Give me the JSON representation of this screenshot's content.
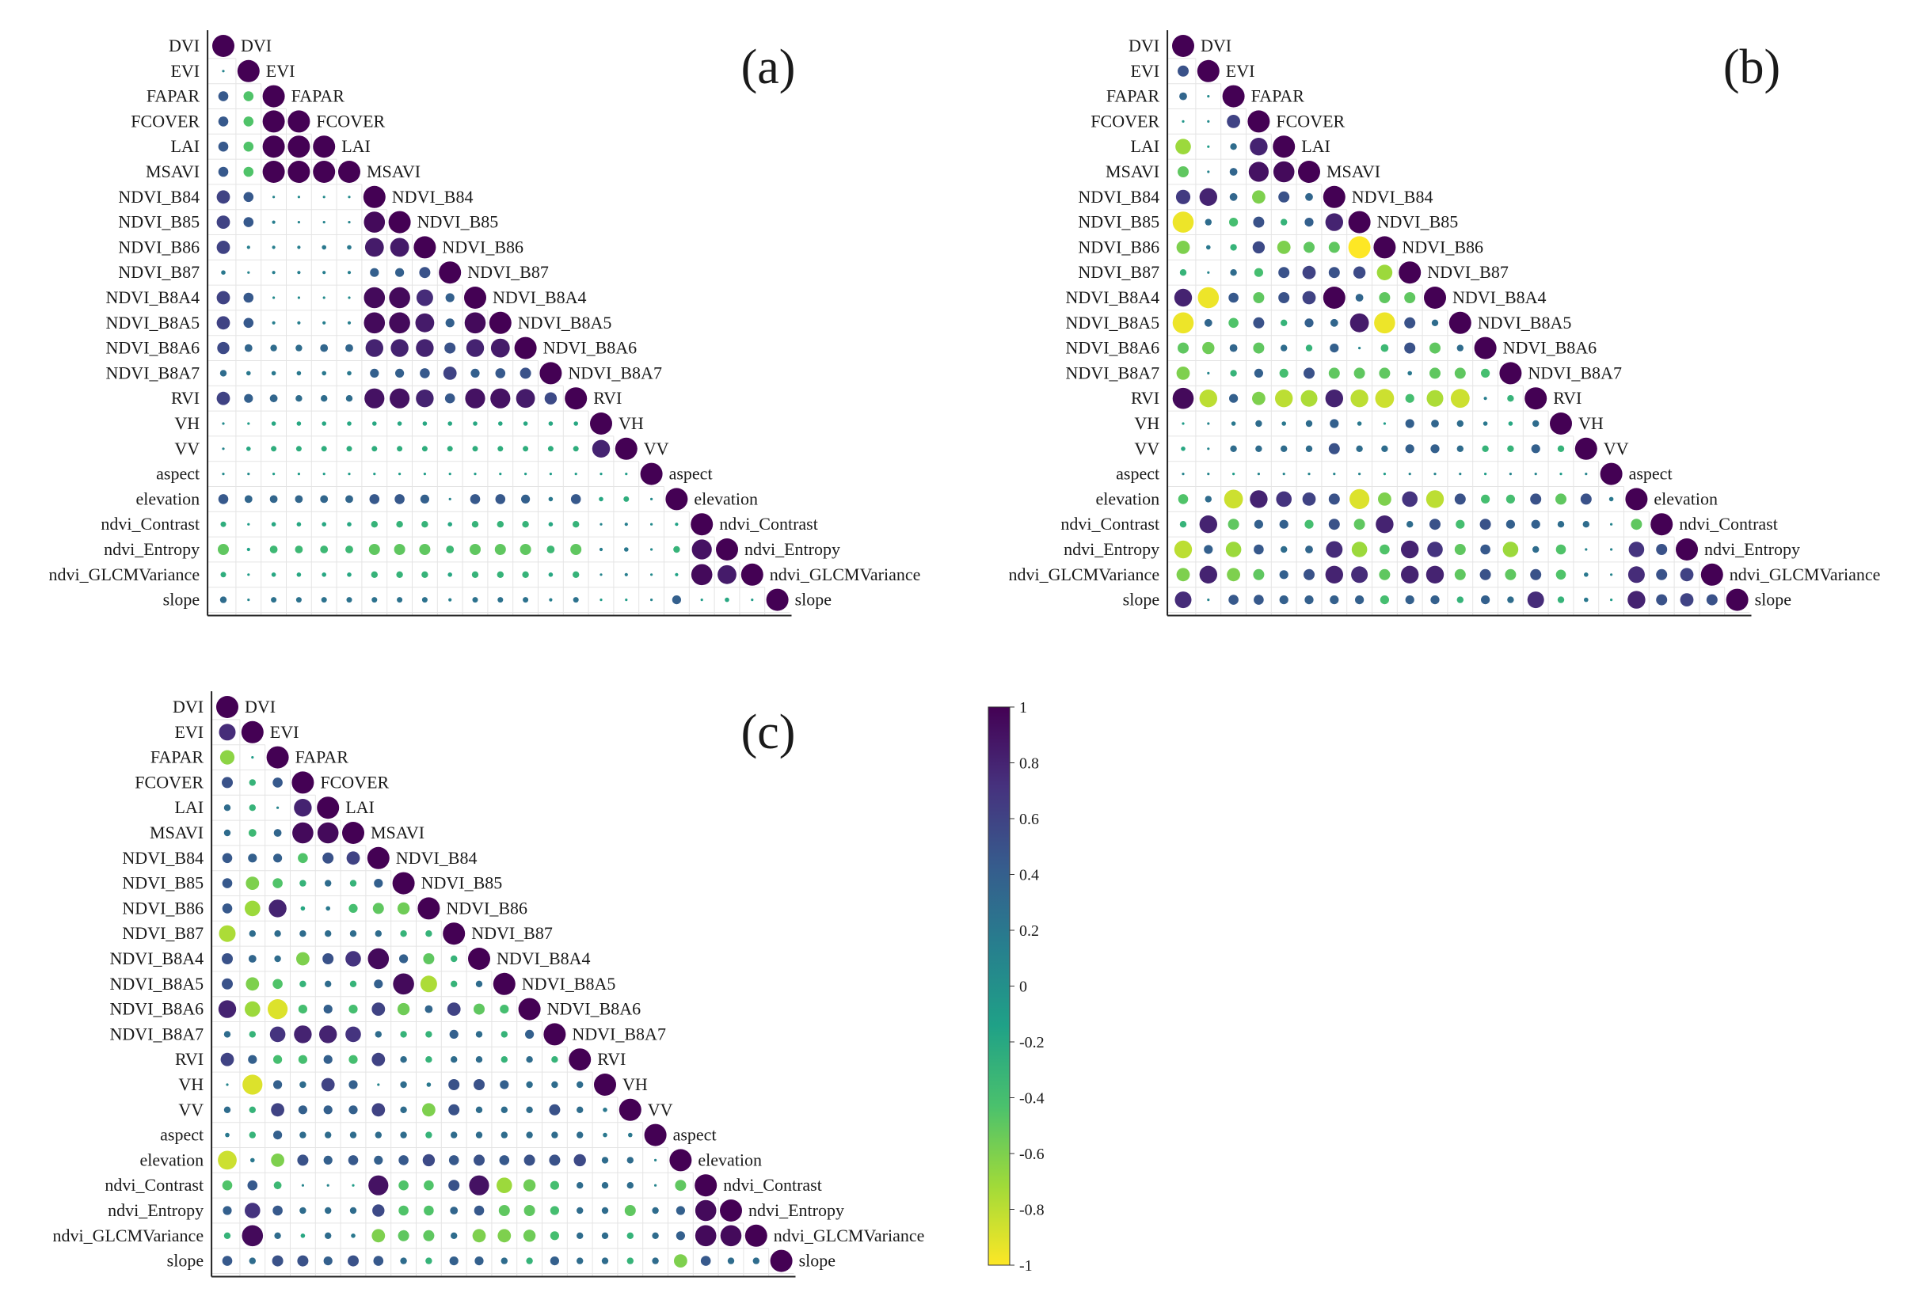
{
  "chart_data": {
    "type": "heatmap",
    "variables": [
      "DVI",
      "EVI",
      "FAPAR",
      "FCOVER",
      "LAI",
      "MSAVI",
      "NDVI_B84",
      "NDVI_B85",
      "NDVI_B86",
      "NDVI_B87",
      "NDVI_B8A4",
      "NDVI_B8A5",
      "NDVI_B8A6",
      "NDVI_B8A7",
      "RVI",
      "VH",
      "VV",
      "aspect",
      "elevation",
      "ndvi_Contrast",
      "ndvi_Entropy",
      "ndvi_GLCMVariance",
      "slope"
    ],
    "colorbar": {
      "range": [
        -1,
        1
      ],
      "ticks": [
        1,
        0.8,
        0.6,
        0.4,
        0.2,
        0,
        -0.2,
        -0.4,
        -0.6,
        -0.8,
        -1
      ],
      "tick_labels": [
        "1",
        "0.8",
        "0.6",
        "0.4",
        "0.2",
        "0",
        "-0.2",
        "-0.4",
        "-0.6",
        "-0.8",
        "-1"
      ],
      "colors": [
        "#fde725",
        "#a0da39",
        "#4ac16d",
        "#1fa187",
        "#277f8e",
        "#365c8d",
        "#46327e",
        "#440154"
      ]
    },
    "panels": [
      {
        "label": "(a)",
        "matrix": [
          [
            1.0
          ],
          [
            0.1,
            1.0
          ],
          [
            0.45,
            -0.45,
            1.0
          ],
          [
            0.45,
            -0.45,
            1.0,
            1.0
          ],
          [
            0.45,
            -0.45,
            1.0,
            1.0,
            1.0
          ],
          [
            0.45,
            -0.45,
            1.0,
            1.0,
            1.0,
            1.0
          ],
          [
            0.6,
            0.45,
            0.1,
            0.05,
            0.05,
            0.05,
            1.0
          ],
          [
            0.6,
            0.45,
            0.15,
            0.1,
            0.1,
            0.1,
            0.95,
            1.0
          ],
          [
            0.6,
            0.15,
            0.15,
            0.15,
            0.2,
            0.2,
            0.85,
            0.85,
            1.0
          ],
          [
            0.2,
            0.1,
            0.15,
            0.15,
            0.15,
            0.15,
            0.4,
            0.4,
            0.5,
            1.0
          ],
          [
            0.6,
            0.45,
            0.05,
            0.05,
            0.05,
            0.05,
            0.95,
            0.95,
            0.75,
            0.4,
            1.0
          ],
          [
            0.6,
            0.45,
            0.15,
            0.15,
            0.15,
            0.15,
            0.95,
            0.95,
            0.85,
            0.4,
            0.95,
            1.0
          ],
          [
            0.55,
            0.35,
            0.3,
            0.3,
            0.35,
            0.35,
            0.8,
            0.8,
            0.8,
            0.5,
            0.8,
            0.85,
            1.0
          ],
          [
            0.3,
            0.2,
            0.2,
            0.2,
            0.2,
            0.2,
            0.4,
            0.4,
            0.45,
            0.6,
            0.4,
            0.45,
            0.5,
            1.0
          ],
          [
            0.6,
            0.4,
            0.35,
            0.3,
            0.3,
            0.3,
            0.9,
            0.9,
            0.8,
            0.45,
            0.9,
            0.9,
            0.85,
            0.55,
            1.0
          ],
          [
            0.05,
            -0.1,
            -0.2,
            -0.2,
            -0.2,
            -0.2,
            -0.2,
            -0.2,
            -0.2,
            -0.2,
            -0.2,
            -0.2,
            -0.2,
            -0.2,
            -0.2,
            1.0
          ],
          [
            0.1,
            -0.2,
            -0.25,
            -0.25,
            -0.25,
            -0.25,
            -0.25,
            -0.25,
            -0.25,
            -0.25,
            -0.25,
            -0.25,
            -0.25,
            -0.25,
            -0.25,
            0.8,
            1.0
          ],
          [
            0.05,
            0.05,
            -0.1,
            -0.1,
            -0.1,
            -0.1,
            -0.1,
            -0.1,
            -0.1,
            -0.1,
            -0.1,
            -0.1,
            -0.1,
            -0.1,
            -0.1,
            -0.1,
            -0.1,
            1.0
          ],
          [
            0.45,
            0.35,
            0.35,
            0.35,
            0.35,
            0.35,
            0.45,
            0.45,
            0.4,
            0.1,
            0.45,
            0.45,
            0.4,
            0.2,
            0.45,
            -0.2,
            -0.25,
            0.05,
            1.0
          ],
          [
            -0.25,
            -0.1,
            -0.2,
            -0.2,
            -0.2,
            -0.2,
            -0.3,
            -0.3,
            -0.3,
            -0.2,
            -0.3,
            -0.3,
            -0.3,
            -0.2,
            -0.3,
            0.1,
            0.15,
            0.05,
            -0.15,
            1.0
          ],
          [
            -0.5,
            -0.15,
            -0.35,
            -0.35,
            -0.35,
            -0.35,
            -0.5,
            -0.5,
            -0.5,
            -0.35,
            -0.5,
            -0.5,
            -0.5,
            -0.35,
            -0.5,
            0.15,
            0.2,
            0.05,
            -0.3,
            0.9,
            1.0
          ],
          [
            -0.25,
            -0.1,
            -0.2,
            -0.2,
            -0.2,
            -0.2,
            -0.3,
            -0.3,
            -0.3,
            -0.2,
            -0.3,
            -0.3,
            -0.3,
            -0.2,
            -0.3,
            0.1,
            0.15,
            0.05,
            -0.15,
            0.95,
            0.85,
            1.0
          ],
          [
            0.3,
            0.1,
            0.25,
            0.25,
            0.25,
            0.25,
            0.25,
            0.25,
            0.25,
            0.15,
            0.25,
            0.25,
            0.25,
            0.15,
            0.25,
            -0.1,
            -0.1,
            0.1,
            0.4,
            -0.1,
            -0.2,
            -0.1,
            1.0
          ]
        ]
      },
      {
        "label": "(b)",
        "matrix": [
          [
            1.0
          ],
          [
            0.5,
            1.0
          ],
          [
            0.35,
            0.05,
            1.0
          ],
          [
            -0.05,
            0.05,
            0.6,
            1.0
          ],
          [
            -0.7,
            -0.1,
            0.3,
            0.8,
            1.0
          ],
          [
            -0.5,
            0.1,
            0.35,
            0.9,
            0.95,
            1.0
          ],
          [
            0.65,
            0.8,
            0.35,
            -0.6,
            0.5,
            0.35,
            1.0
          ],
          [
            -0.95,
            0.3,
            -0.4,
            0.5,
            -0.3,
            0.4,
            0.8,
            1.0
          ],
          [
            -0.6,
            0.2,
            -0.3,
            0.55,
            -0.6,
            -0.5,
            -0.5,
            -1.0,
            1.0
          ],
          [
            -0.3,
            0.1,
            0.3,
            -0.4,
            0.5,
            0.6,
            0.5,
            0.55,
            -0.7,
            1.0
          ],
          [
            0.8,
            -0.95,
            0.45,
            -0.5,
            0.5,
            0.6,
            1.0,
            0.35,
            -0.5,
            -0.5,
            1.0
          ],
          [
            -0.95,
            0.35,
            -0.45,
            0.5,
            -0.3,
            0.4,
            0.35,
            0.85,
            -0.95,
            0.5,
            0.3,
            1.0
          ],
          [
            -0.5,
            -0.55,
            0.35,
            -0.5,
            0.3,
            -0.3,
            0.4,
            0.1,
            -0.35,
            0.5,
            -0.5,
            0.3,
            1.0
          ],
          [
            -0.6,
            0.1,
            -0.3,
            0.4,
            -0.4,
            0.5,
            -0.5,
            -0.5,
            -0.5,
            0.2,
            -0.5,
            -0.5,
            -0.4,
            1.0
          ],
          [
            0.95,
            -0.8,
            0.4,
            -0.6,
            -0.8,
            -0.75,
            0.8,
            -0.8,
            -0.85,
            -0.4,
            -0.75,
            -0.85,
            0.15,
            -0.3,
            1.0
          ],
          [
            -0.1,
            0.1,
            0.2,
            0.3,
            0.2,
            0.3,
            0.4,
            0.2,
            -0.1,
            0.4,
            0.35,
            0.3,
            0.2,
            -0.2,
            0.3,
            1.0
          ],
          [
            -0.2,
            0.1,
            0.3,
            0.3,
            0.3,
            0.3,
            0.5,
            0.3,
            0.3,
            0.4,
            0.4,
            0.3,
            -0.3,
            -0.3,
            0.4,
            -0.3,
            1.0
          ],
          [
            0.1,
            0.1,
            -0.1,
            0.1,
            0.1,
            0.1,
            0.1,
            0.1,
            -0.1,
            0.1,
            0.1,
            0.1,
            -0.1,
            0.1,
            0.1,
            -0.1,
            0.1,
            1.0
          ],
          [
            -0.45,
            0.3,
            -0.85,
            0.8,
            0.7,
            0.6,
            0.5,
            -0.9,
            -0.6,
            0.7,
            -0.8,
            0.5,
            -0.4,
            -0.4,
            0.5,
            -0.5,
            0.5,
            0.2,
            1.0
          ],
          [
            -0.3,
            0.8,
            -0.5,
            0.4,
            0.4,
            -0.4,
            0.5,
            -0.5,
            0.8,
            0.3,
            0.5,
            -0.4,
            0.5,
            0.4,
            0.4,
            0.3,
            0.3,
            0.1,
            -0.5,
            1.0
          ],
          [
            -0.8,
            0.4,
            -0.7,
            0.45,
            0.3,
            0.35,
            0.75,
            -0.7,
            -0.45,
            0.8,
            0.7,
            -0.5,
            0.45,
            -0.7,
            0.3,
            -0.45,
            0.1,
            0.1,
            0.7,
            0.5,
            1.0
          ],
          [
            -0.6,
            0.8,
            -0.6,
            -0.5,
            0.4,
            0.5,
            0.8,
            0.75,
            -0.5,
            0.8,
            0.8,
            -0.5,
            0.5,
            -0.5,
            0.5,
            -0.45,
            0.2,
            0.1,
            0.75,
            0.5,
            0.6,
            1.0
          ],
          [
            0.75,
            0.1,
            0.45,
            0.45,
            0.4,
            0.4,
            0.4,
            0.4,
            -0.4,
            0.4,
            0.4,
            -0.3,
            0.4,
            0.3,
            0.75,
            -0.3,
            0.2,
            -0.1,
            0.8,
            0.5,
            0.6,
            0.5,
            1.0
          ]
        ]
      },
      {
        "label": "(c)",
        "matrix": [
          [
            1.0
          ],
          [
            0.75,
            1.0
          ],
          [
            -0.65,
            -0.1,
            1.0
          ],
          [
            0.5,
            -0.3,
            0.45,
            1.0
          ],
          [
            0.3,
            -0.3,
            0.1,
            0.8,
            1.0
          ],
          [
            0.3,
            -0.35,
            0.35,
            0.95,
            0.95,
            1.0
          ],
          [
            0.45,
            0.4,
            0.4,
            -0.45,
            0.5,
            0.6,
            1.0
          ],
          [
            0.45,
            -0.6,
            -0.45,
            -0.3,
            0.3,
            -0.3,
            0.4,
            1.0
          ],
          [
            0.45,
            -0.7,
            0.8,
            -0.2,
            0.2,
            -0.4,
            -0.5,
            -0.55,
            1.0
          ],
          [
            -0.75,
            0.3,
            0.3,
            0.3,
            0.3,
            0.3,
            0.3,
            -0.3,
            -0.3,
            1.0
          ],
          [
            0.5,
            0.35,
            0.3,
            -0.6,
            0.5,
            0.7,
            0.95,
            0.4,
            -0.5,
            -0.3,
            1.0
          ],
          [
            0.5,
            -0.6,
            -0.45,
            -0.3,
            0.3,
            -0.3,
            0.4,
            0.95,
            -0.75,
            -0.3,
            0.3,
            1.0
          ],
          [
            0.8,
            -0.7,
            -0.9,
            -0.4,
            0.4,
            -0.4,
            0.6,
            -0.55,
            0.35,
            0.6,
            -0.5,
            -0.4,
            1.0
          ],
          [
            0.3,
            -0.3,
            0.7,
            0.8,
            0.8,
            0.7,
            0.3,
            -0.3,
            -0.3,
            0.4,
            0.3,
            -0.3,
            0.4,
            1.0
          ],
          [
            0.6,
            0.4,
            -0.4,
            -0.4,
            0.4,
            -0.4,
            0.6,
            0.3,
            -0.3,
            0.3,
            0.3,
            -0.3,
            0.3,
            -0.3,
            1.0
          ],
          [
            0.1,
            -0.9,
            0.4,
            0.3,
            0.6,
            0.4,
            0.1,
            0.3,
            0.2,
            0.5,
            0.5,
            0.4,
            0.3,
            0.3,
            0.3,
            1.0
          ],
          [
            0.3,
            -0.3,
            0.6,
            0.4,
            0.4,
            0.4,
            0.6,
            0.3,
            -0.6,
            0.5,
            0.3,
            0.3,
            0.3,
            0.5,
            0.3,
            0.2,
            1.0
          ],
          [
            0.2,
            -0.3,
            0.4,
            0.3,
            0.3,
            0.3,
            0.3,
            0.3,
            -0.3,
            0.3,
            0.3,
            0.3,
            0.3,
            0.3,
            0.3,
            0.2,
            0.2,
            1.0
          ],
          [
            -0.85,
            0.2,
            -0.6,
            0.5,
            0.4,
            0.45,
            0.4,
            0.45,
            0.55,
            0.45,
            0.5,
            0.45,
            0.5,
            0.5,
            0.55,
            0.3,
            0.3,
            0.1,
            1.0
          ],
          [
            -0.45,
            0.45,
            -0.35,
            0.1,
            0.1,
            -0.1,
            0.9,
            -0.45,
            -0.45,
            0.5,
            0.9,
            -0.7,
            -0.55,
            -0.4,
            0.3,
            0.3,
            0.3,
            0.1,
            -0.5,
            1.0
          ],
          [
            0.4,
            0.7,
            0.45,
            0.3,
            0.3,
            0.3,
            0.55,
            -0.45,
            -0.45,
            0.35,
            0.45,
            -0.5,
            -0.5,
            -0.4,
            0.3,
            0.3,
            -0.5,
            0.3,
            0.4,
            0.95,
            1.0
          ],
          [
            -0.3,
            0.95,
            0.3,
            -0.2,
            0.3,
            0.2,
            -0.6,
            -0.5,
            -0.5,
            0.3,
            -0.6,
            -0.6,
            -0.55,
            -0.4,
            0.3,
            0.3,
            -0.3,
            0.3,
            0.4,
            0.95,
            0.95,
            1.0
          ],
          [
            0.45,
            0.3,
            0.5,
            0.5,
            0.4,
            0.5,
            0.45,
            0.3,
            -0.3,
            0.4,
            0.4,
            0.3,
            -0.3,
            0.4,
            0.3,
            0.3,
            -0.3,
            0.3,
            -0.6,
            0.45,
            0.3,
            0.3,
            1.0
          ]
        ]
      }
    ]
  }
}
